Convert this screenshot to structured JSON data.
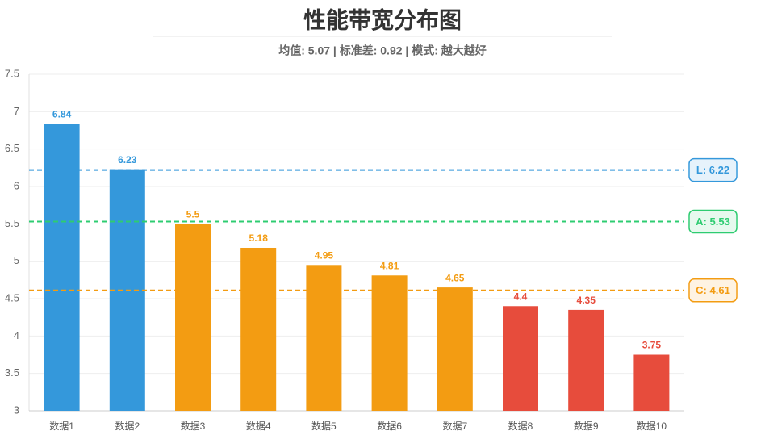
{
  "chart_data": {
    "type": "bar",
    "title": "性能带宽分布图",
    "subtitle": "均值: 5.07 | 标准差: 0.92 | 模式: 越大越好",
    "categories": [
      "数据1",
      "数据2",
      "数据3",
      "数据4",
      "数据5",
      "数据6",
      "数据7",
      "数据8",
      "数据9",
      "数据10"
    ],
    "values": [
      6.84,
      6.23,
      5.5,
      5.18,
      4.95,
      4.81,
      4.65,
      4.4,
      4.35,
      3.75
    ],
    "colors": [
      "#3498db",
      "#3498db",
      "#f39c12",
      "#f39c12",
      "#f39c12",
      "#f39c12",
      "#f39c12",
      "#e74c3c",
      "#e74c3c",
      "#e74c3c"
    ],
    "ylim": [
      3,
      7.5
    ],
    "yticks": [
      3,
      3.5,
      4,
      4.5,
      5,
      5.5,
      6,
      6.5,
      7,
      7.5
    ],
    "grid": true,
    "reference_lines": [
      {
        "value": 6.22,
        "label": "L: 6.22",
        "color": "#3498db"
      },
      {
        "value": 5.53,
        "label": "A: 5.53",
        "color": "#2ecc71"
      },
      {
        "value": 4.61,
        "label": "C: 4.61",
        "color": "#f39c12"
      }
    ]
  }
}
